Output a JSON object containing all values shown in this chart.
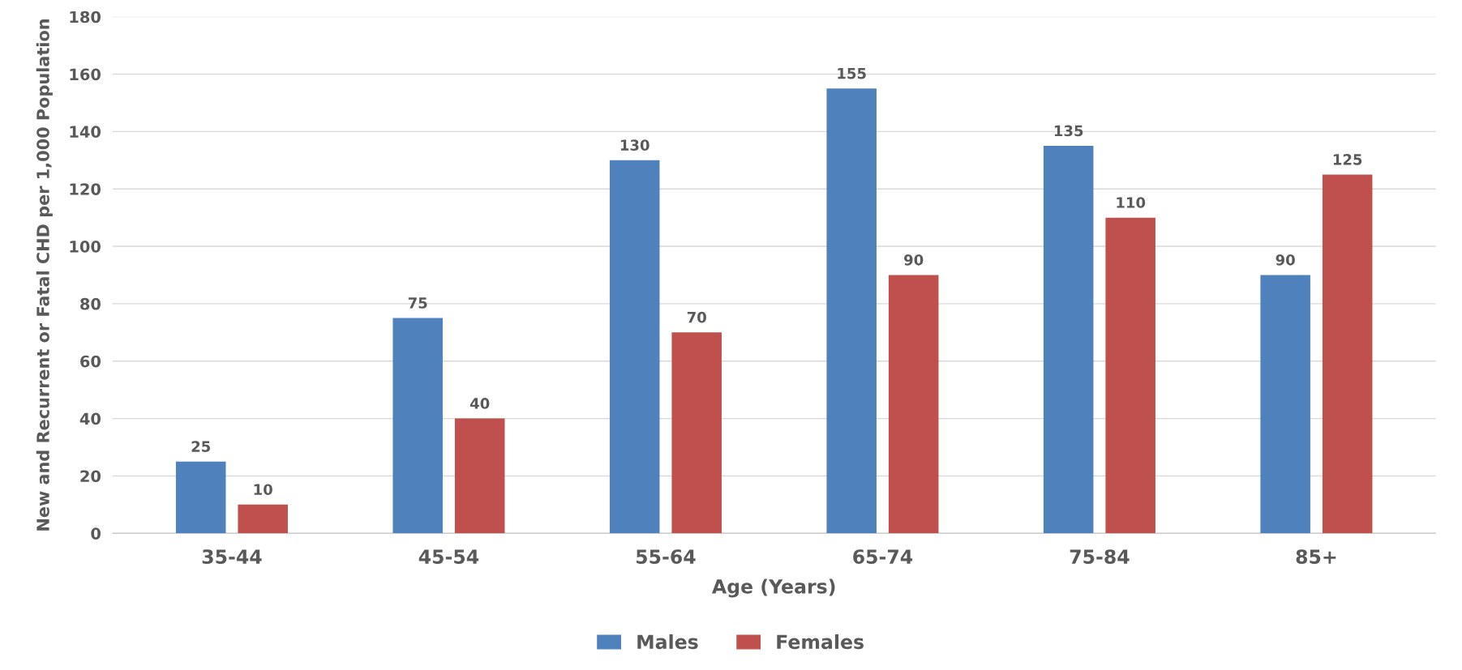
{
  "chart_data": {
    "type": "bar",
    "xlabel": "Age (Years)",
    "ylabel": "New and Recurrent or Fatal CHD per 1,000 Population",
    "categories": [
      "35-44",
      "45-54",
      "55-64",
      "65-74",
      "75-84",
      "85+"
    ],
    "series": [
      {
        "name": "Males",
        "color": "#4f81bd",
        "values": [
          25,
          75,
          130,
          155,
          135,
          90
        ]
      },
      {
        "name": "Females",
        "color": "#c0504d",
        "values": [
          10,
          40,
          70,
          90,
          110,
          125
        ]
      }
    ],
    "ylim": [
      0,
      180
    ],
    "yticks": [
      0,
      20,
      40,
      60,
      80,
      100,
      120,
      140,
      160,
      180
    ],
    "grid": "y",
    "legend": "bottom",
    "data_labels": true
  }
}
